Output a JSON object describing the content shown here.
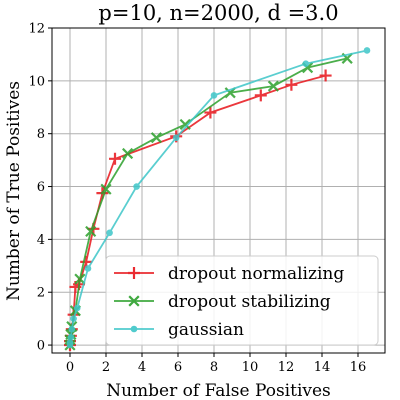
{
  "chart_data": {
    "type": "line",
    "title": "p=10, n=2000, d =3.0",
    "xlabel": "Number of False Positives",
    "ylabel": "Number of True Positives",
    "xlim": [
      -1,
      17.5
    ],
    "ylim": [
      -0.3,
      12
    ],
    "xticks": [
      0,
      2,
      4,
      6,
      8,
      10,
      12,
      14,
      16
    ],
    "yticks": [
      0,
      2,
      4,
      6,
      8,
      10,
      12
    ],
    "grid": true,
    "legend_position": "lower-right",
    "series": [
      {
        "name": "dropout normalizing",
        "color": "#e8151b",
        "marker": "plus",
        "x": [
          0.0,
          0.0,
          0.05,
          0.1,
          0.2,
          0.3,
          0.5,
          0.9,
          1.3,
          1.8,
          2.5,
          5.9,
          7.8,
          10.6,
          12.3,
          14.2
        ],
        "y": [
          0.0,
          0.15,
          0.35,
          0.6,
          1.15,
          2.2,
          2.3,
          3.15,
          4.4,
          5.75,
          7.05,
          7.9,
          8.8,
          9.45,
          9.85,
          10.2
        ]
      },
      {
        "name": "dropout stabilizing",
        "color": "#2ca02c",
        "marker": "x",
        "x": [
          0.0,
          0.0,
          0.05,
          0.1,
          0.3,
          0.55,
          1.15,
          2.0,
          3.2,
          4.8,
          6.4,
          8.9,
          11.3,
          13.2,
          15.4
        ],
        "y": [
          0.0,
          0.2,
          0.4,
          0.7,
          1.3,
          2.5,
          4.3,
          5.9,
          7.25,
          7.85,
          8.35,
          9.55,
          9.8,
          10.5,
          10.85
        ]
      },
      {
        "name": "gaussian",
        "color": "#3ec6c8",
        "marker": "circle",
        "x": [
          0.0,
          0.0,
          0.05,
          0.1,
          0.2,
          0.4,
          1.0,
          2.2,
          3.7,
          5.9,
          8.0,
          13.1,
          16.5
        ],
        "y": [
          0.0,
          0.1,
          0.3,
          0.6,
          1.0,
          1.4,
          2.9,
          4.25,
          6.0,
          7.85,
          9.45,
          10.65,
          11.15
        ]
      }
    ]
  }
}
